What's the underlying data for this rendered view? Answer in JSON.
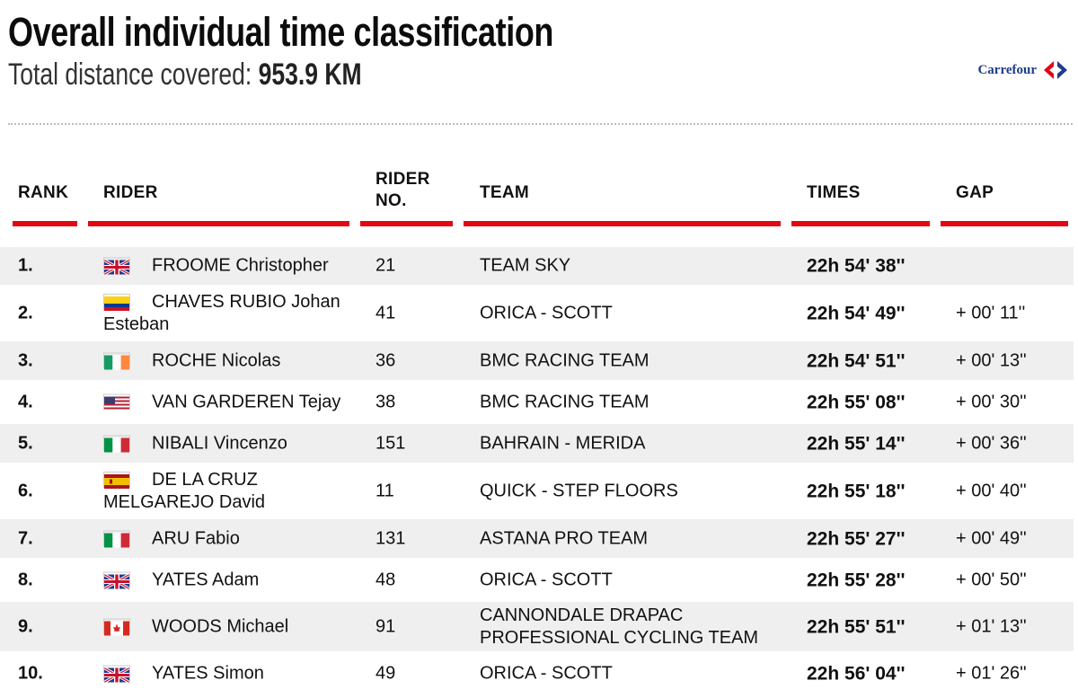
{
  "header": {
    "title": "Overall individual time classification",
    "distance_label": "Total distance covered: ",
    "distance_value": "953.9 KM",
    "sponsor": "Carrefour"
  },
  "table": {
    "columns": {
      "rank": "RANK",
      "rider": "RIDER",
      "rider_no_line1": "RIDER",
      "rider_no_line2": "NO.",
      "team": "TEAM",
      "times": "TIMES",
      "gap": "GAP"
    },
    "rows": [
      {
        "rank": "1.",
        "flag": "gb-flag-icon",
        "name": "FROOME Christopher",
        "number": "21",
        "team": "TEAM SKY",
        "time": "22h 54' 38''",
        "gap": ""
      },
      {
        "rank": "2.",
        "flag": "co-flag-icon",
        "name": "CHAVES RUBIO Johan Esteban",
        "number": "41",
        "team": "ORICA - SCOTT",
        "time": "22h 54' 49''",
        "gap": "+ 00' 11''"
      },
      {
        "rank": "3.",
        "flag": "ie-flag-icon",
        "name": "ROCHE Nicolas",
        "number": "36",
        "team": "BMC RACING TEAM",
        "time": "22h 54' 51''",
        "gap": "+ 00' 13''"
      },
      {
        "rank": "4.",
        "flag": "us-flag-icon",
        "name": "VAN GARDEREN Tejay",
        "number": "38",
        "team": "BMC RACING TEAM",
        "time": "22h 55' 08''",
        "gap": "+ 00' 30''"
      },
      {
        "rank": "5.",
        "flag": "it-flag-icon",
        "name": "NIBALI Vincenzo",
        "number": "151",
        "team": "BAHRAIN - MERIDA",
        "time": "22h 55' 14''",
        "gap": "+ 00' 36''"
      },
      {
        "rank": "6.",
        "flag": "es-flag-icon",
        "name": "DE LA CRUZ MELGAREJO David",
        "number": "11",
        "team": "QUICK - STEP FLOORS",
        "time": "22h 55' 18''",
        "gap": "+ 00' 40''"
      },
      {
        "rank": "7.",
        "flag": "it-flag-icon",
        "name": "ARU Fabio",
        "number": "131",
        "team": "ASTANA PRO TEAM",
        "time": "22h 55' 27''",
        "gap": "+ 00' 49''"
      },
      {
        "rank": "8.",
        "flag": "gb-flag-icon",
        "name": "YATES Adam",
        "number": "48",
        "team": "ORICA - SCOTT",
        "time": "22h 55' 28''",
        "gap": "+ 00' 50''"
      },
      {
        "rank": "9.",
        "flag": "ca-flag-icon",
        "name": "WOODS Michael",
        "number": "91",
        "team": "CANNONDALE DRAPAC PROFESSIONAL CYCLING TEAM",
        "time": "22h 55' 51''",
        "gap": "+ 01' 13''"
      },
      {
        "rank": "10.",
        "flag": "gb-flag-icon",
        "name": "YATES Simon",
        "number": "49",
        "team": "ORICA - SCOTT",
        "time": "22h 56' 04''",
        "gap": "+ 01' 26''"
      }
    ]
  },
  "colors": {
    "accent_red": "#e30613",
    "row_stripe": "#efefef",
    "sponsor_blue": "#1e3c8c"
  }
}
